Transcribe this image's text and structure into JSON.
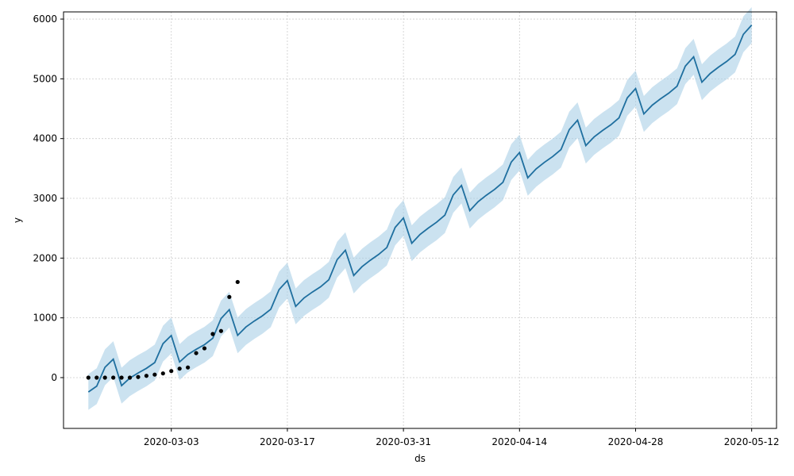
{
  "chart_data": {
    "type": "line",
    "title": "",
    "xlabel": "ds",
    "ylabel": "y",
    "grid": true,
    "x_ticks": [
      "2020-03-03",
      "2020-03-17",
      "2020-03-31",
      "2020-04-14",
      "2020-04-28",
      "2020-05-12"
    ],
    "y_ticks": [
      "0",
      "1000",
      "2000",
      "3000",
      "4000",
      "5000",
      "6000"
    ],
    "xlim": [
      "2020-02-19",
      "2020-05-15"
    ],
    "ylim": [
      -850,
      6120
    ],
    "colors": {
      "forecast_line": "#1f6f9f",
      "uncertainty_band": "#a9cfe6",
      "observed_points": "#000000",
      "grid": "#cccccc"
    },
    "observed": {
      "x": [
        "2020-02-22",
        "2020-02-23",
        "2020-02-24",
        "2020-02-25",
        "2020-02-26",
        "2020-02-27",
        "2020-02-28",
        "2020-02-29",
        "2020-03-01",
        "2020-03-02",
        "2020-03-03",
        "2020-03-04",
        "2020-03-05",
        "2020-03-06",
        "2020-03-07",
        "2020-03-08",
        "2020-03-09",
        "2020-03-10",
        "2020-03-11",
        "2020-03-12",
        "2020-03-13"
      ],
      "y": [
        0,
        0,
        0,
        0,
        0,
        0,
        10,
        30,
        50,
        70,
        110,
        150,
        170,
        410,
        490,
        730,
        780,
        1350,
        1600,
        null,
        null
      ]
    },
    "forecast": {
      "x_start": "2020-02-22",
      "x_end": "2020-05-12",
      "anchors": [
        {
          "x": "2020-02-22",
          "yhat": -240,
          "yhat_lower": -550,
          "yhat_upper": 70
        },
        {
          "x": "2020-03-07",
          "yhat": 550,
          "yhat_lower": 250,
          "yhat_upper": 850
        },
        {
          "x": "2020-03-21",
          "yhat": 1520,
          "yhat_lower": 1220,
          "yhat_upper": 1820
        },
        {
          "x": "2020-04-04",
          "yhat": 2600,
          "yhat_lower": 2300,
          "yhat_upper": 2900
        },
        {
          "x": "2020-04-18",
          "yhat": 3700,
          "yhat_lower": 3400,
          "yhat_upper": 4000
        },
        {
          "x": "2020-05-02",
          "yhat": 4760,
          "yhat_lower": 4460,
          "yhat_upper": 5060
        },
        {
          "x": "2020-05-12",
          "yhat": 5520,
          "yhat_lower": 5220,
          "yhat_upper": 5820
        }
      ],
      "weekly_pattern": [
        0,
        40,
        300,
        380,
        -120,
        -50,
        -20
      ],
      "band_halfwidth": 300
    }
  }
}
